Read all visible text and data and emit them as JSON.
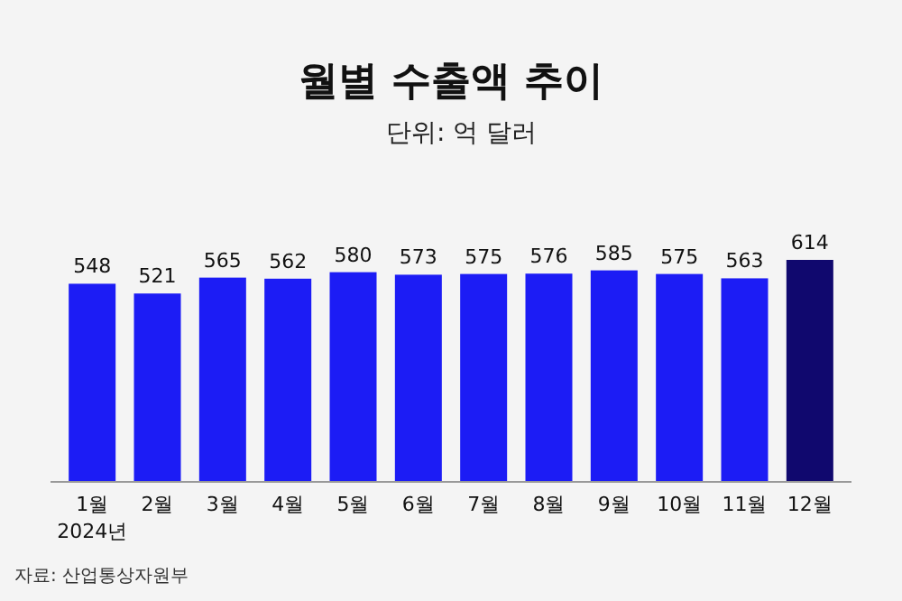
{
  "chart_data": {
    "type": "bar",
    "title": "월별 수출액 추이",
    "subtitle": "단위: 억 달러",
    "categories": [
      "1월",
      "2월",
      "3월",
      "4월",
      "5월",
      "6월",
      "7월",
      "8월",
      "9월",
      "10월",
      "11월",
      "12월"
    ],
    "values": [
      548,
      521,
      565,
      562,
      580,
      573,
      575,
      576,
      585,
      575,
      563,
      614
    ],
    "colors": [
      "#1c1cf5",
      "#1c1cf5",
      "#1c1cf5",
      "#1c1cf5",
      "#1c1cf5",
      "#1c1cf5",
      "#1c1cf5",
      "#1c1cf5",
      "#1c1cf5",
      "#1c1cf5",
      "#1c1cf5",
      "#10086e"
    ],
    "data_labels": true,
    "annotations": [
      "2024년",
      "자료: 산업통상자원부"
    ]
  }
}
